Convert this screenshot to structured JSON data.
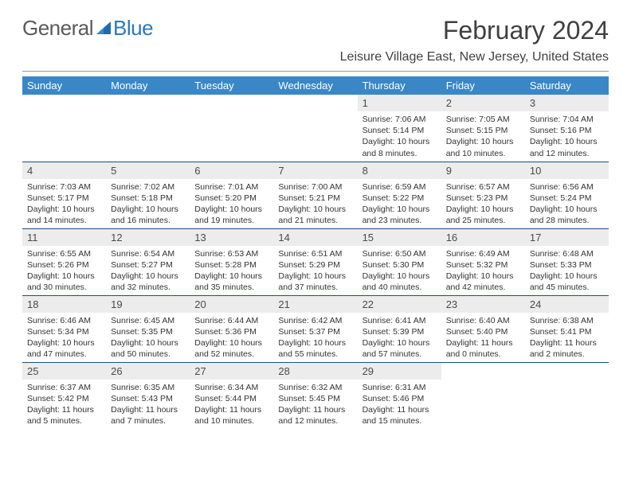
{
  "logo": {
    "text1": "General",
    "text2": "Blue",
    "tri_color": "#1f6bb0"
  },
  "title": "February 2024",
  "location": "Leisure Village East, New Jersey, United States",
  "colors": {
    "header_bg": "#3a87c8",
    "header_fg": "#ffffff",
    "daynum_bg": "#ececec",
    "row_border": "#1f4e79"
  },
  "day_headers": [
    "Sunday",
    "Monday",
    "Tuesday",
    "Wednesday",
    "Thursday",
    "Friday",
    "Saturday"
  ],
  "weeks": [
    [
      {
        "empty": true
      },
      {
        "empty": true
      },
      {
        "empty": true
      },
      {
        "empty": true
      },
      {
        "num": "1",
        "sunrise": "Sunrise: 7:06 AM",
        "sunset": "Sunset: 5:14 PM",
        "daylight": "Daylight: 10 hours and 8 minutes."
      },
      {
        "num": "2",
        "sunrise": "Sunrise: 7:05 AM",
        "sunset": "Sunset: 5:15 PM",
        "daylight": "Daylight: 10 hours and 10 minutes."
      },
      {
        "num": "3",
        "sunrise": "Sunrise: 7:04 AM",
        "sunset": "Sunset: 5:16 PM",
        "daylight": "Daylight: 10 hours and 12 minutes."
      }
    ],
    [
      {
        "num": "4",
        "sunrise": "Sunrise: 7:03 AM",
        "sunset": "Sunset: 5:17 PM",
        "daylight": "Daylight: 10 hours and 14 minutes."
      },
      {
        "num": "5",
        "sunrise": "Sunrise: 7:02 AM",
        "sunset": "Sunset: 5:18 PM",
        "daylight": "Daylight: 10 hours and 16 minutes."
      },
      {
        "num": "6",
        "sunrise": "Sunrise: 7:01 AM",
        "sunset": "Sunset: 5:20 PM",
        "daylight": "Daylight: 10 hours and 19 minutes."
      },
      {
        "num": "7",
        "sunrise": "Sunrise: 7:00 AM",
        "sunset": "Sunset: 5:21 PM",
        "daylight": "Daylight: 10 hours and 21 minutes."
      },
      {
        "num": "8",
        "sunrise": "Sunrise: 6:59 AM",
        "sunset": "Sunset: 5:22 PM",
        "daylight": "Daylight: 10 hours and 23 minutes."
      },
      {
        "num": "9",
        "sunrise": "Sunrise: 6:57 AM",
        "sunset": "Sunset: 5:23 PM",
        "daylight": "Daylight: 10 hours and 25 minutes."
      },
      {
        "num": "10",
        "sunrise": "Sunrise: 6:56 AM",
        "sunset": "Sunset: 5:24 PM",
        "daylight": "Daylight: 10 hours and 28 minutes."
      }
    ],
    [
      {
        "num": "11",
        "sunrise": "Sunrise: 6:55 AM",
        "sunset": "Sunset: 5:26 PM",
        "daylight": "Daylight: 10 hours and 30 minutes."
      },
      {
        "num": "12",
        "sunrise": "Sunrise: 6:54 AM",
        "sunset": "Sunset: 5:27 PM",
        "daylight": "Daylight: 10 hours and 32 minutes."
      },
      {
        "num": "13",
        "sunrise": "Sunrise: 6:53 AM",
        "sunset": "Sunset: 5:28 PM",
        "daylight": "Daylight: 10 hours and 35 minutes."
      },
      {
        "num": "14",
        "sunrise": "Sunrise: 6:51 AM",
        "sunset": "Sunset: 5:29 PM",
        "daylight": "Daylight: 10 hours and 37 minutes."
      },
      {
        "num": "15",
        "sunrise": "Sunrise: 6:50 AM",
        "sunset": "Sunset: 5:30 PM",
        "daylight": "Daylight: 10 hours and 40 minutes."
      },
      {
        "num": "16",
        "sunrise": "Sunrise: 6:49 AM",
        "sunset": "Sunset: 5:32 PM",
        "daylight": "Daylight: 10 hours and 42 minutes."
      },
      {
        "num": "17",
        "sunrise": "Sunrise: 6:48 AM",
        "sunset": "Sunset: 5:33 PM",
        "daylight": "Daylight: 10 hours and 45 minutes."
      }
    ],
    [
      {
        "num": "18",
        "sunrise": "Sunrise: 6:46 AM",
        "sunset": "Sunset: 5:34 PM",
        "daylight": "Daylight: 10 hours and 47 minutes."
      },
      {
        "num": "19",
        "sunrise": "Sunrise: 6:45 AM",
        "sunset": "Sunset: 5:35 PM",
        "daylight": "Daylight: 10 hours and 50 minutes."
      },
      {
        "num": "20",
        "sunrise": "Sunrise: 6:44 AM",
        "sunset": "Sunset: 5:36 PM",
        "daylight": "Daylight: 10 hours and 52 minutes."
      },
      {
        "num": "21",
        "sunrise": "Sunrise: 6:42 AM",
        "sunset": "Sunset: 5:37 PM",
        "daylight": "Daylight: 10 hours and 55 minutes."
      },
      {
        "num": "22",
        "sunrise": "Sunrise: 6:41 AM",
        "sunset": "Sunset: 5:39 PM",
        "daylight": "Daylight: 10 hours and 57 minutes."
      },
      {
        "num": "23",
        "sunrise": "Sunrise: 6:40 AM",
        "sunset": "Sunset: 5:40 PM",
        "daylight": "Daylight: 11 hours and 0 minutes."
      },
      {
        "num": "24",
        "sunrise": "Sunrise: 6:38 AM",
        "sunset": "Sunset: 5:41 PM",
        "daylight": "Daylight: 11 hours and 2 minutes."
      }
    ],
    [
      {
        "num": "25",
        "sunrise": "Sunrise: 6:37 AM",
        "sunset": "Sunset: 5:42 PM",
        "daylight": "Daylight: 11 hours and 5 minutes."
      },
      {
        "num": "26",
        "sunrise": "Sunrise: 6:35 AM",
        "sunset": "Sunset: 5:43 PM",
        "daylight": "Daylight: 11 hours and 7 minutes."
      },
      {
        "num": "27",
        "sunrise": "Sunrise: 6:34 AM",
        "sunset": "Sunset: 5:44 PM",
        "daylight": "Daylight: 11 hours and 10 minutes."
      },
      {
        "num": "28",
        "sunrise": "Sunrise: 6:32 AM",
        "sunset": "Sunset: 5:45 PM",
        "daylight": "Daylight: 11 hours and 12 minutes."
      },
      {
        "num": "29",
        "sunrise": "Sunrise: 6:31 AM",
        "sunset": "Sunset: 5:46 PM",
        "daylight": "Daylight: 11 hours and 15 minutes."
      },
      {
        "empty": true
      },
      {
        "empty": true
      }
    ]
  ]
}
